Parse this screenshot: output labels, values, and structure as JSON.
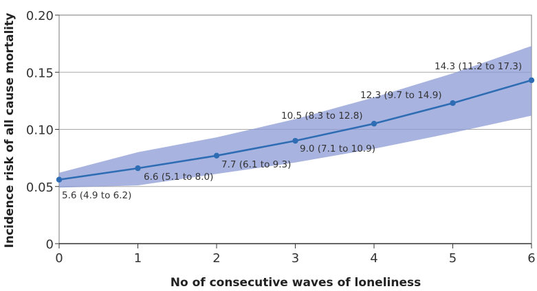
{
  "chart_data": {
    "type": "line",
    "title": "",
    "xlabel": "No of consecutive waves of loneliness",
    "ylabel": "Incidence risk of all cause mortality",
    "xlim": [
      0,
      6
    ],
    "ylim": [
      0,
      0.2
    ],
    "x": [
      0,
      1,
      2,
      3,
      4,
      5,
      6
    ],
    "x_tick_labels": [
      "0",
      "1",
      "2",
      "3",
      "4",
      "5",
      "6"
    ],
    "y_ticks": [
      0,
      0.05,
      0.1,
      0.15,
      0.2
    ],
    "y_tick_labels": [
      "0",
      "0.05",
      "0.10",
      "0.15",
      "0.20"
    ],
    "grid": "horizontal",
    "series": [
      {
        "name": "Incidence risk",
        "values": [
          0.056,
          0.066,
          0.077,
          0.09,
          0.105,
          0.123,
          0.143
        ],
        "lower": [
          0.049,
          0.051,
          0.061,
          0.071,
          0.083,
          0.097,
          0.112
        ],
        "upper": [
          0.062,
          0.08,
          0.093,
          0.109,
          0.128,
          0.149,
          0.173
        ],
        "color": "#2e6db4",
        "band_color": "#8b9ad4"
      }
    ],
    "annotations": [
      "5.6 (4.9 to 6.2)",
      "6.6 (5.1 to 8.0)",
      "7.7 (6.1 to 9.3)",
      "9.0 (7.1 to 10.9)",
      "10.5 (8.3 to 12.8)",
      "12.3 (9.7 to 14.9)",
      "14.3 (11.2 to 17.3)"
    ]
  }
}
